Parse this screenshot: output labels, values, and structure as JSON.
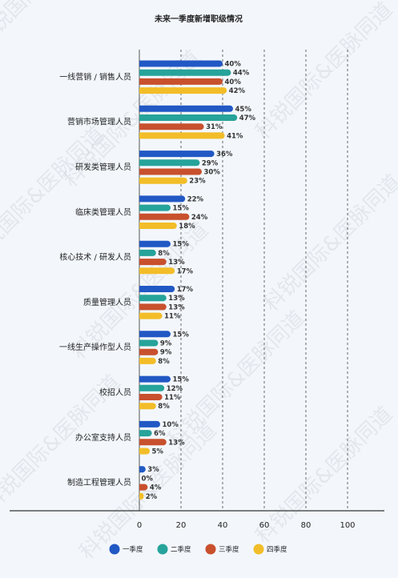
{
  "chart_data": {
    "type": "bar",
    "orientation": "horizontal",
    "title": "未来一季度新增职级情况",
    "categories": [
      "一线营销 / 销售人员",
      "营销市场管理人员",
      "研发类管理人员",
      "临床类管理人员",
      "核心技术 / 研发人员",
      "质量管理人员",
      "一线生产操作型人员",
      "校招人员",
      "办公室支持人员",
      "制造工程管理人员"
    ],
    "series": [
      {
        "name": "一季度",
        "color": "#2158c4",
        "values": [
          40,
          45,
          36,
          22,
          15,
          17,
          15,
          15,
          10,
          3
        ],
        "labels": [
          "40%",
          "45%",
          "36%",
          "22%",
          "15%",
          "17%",
          "15%",
          "15%",
          "10%",
          "3%"
        ]
      },
      {
        "name": "二季度",
        "color": "#26a39a",
        "values": [
          44,
          47,
          29,
          15,
          8,
          13,
          9,
          12,
          6,
          0
        ],
        "labels": [
          "44%",
          "47%",
          "29%",
          "15%",
          "8%",
          "13%",
          "9%",
          "12%",
          "6%",
          "0%"
        ]
      },
      {
        "name": "三季度",
        "color": "#c8502d",
        "values": [
          40,
          31,
          30,
          24,
          13,
          13,
          9,
          11,
          13,
          4
        ],
        "labels": [
          "40%",
          "31%",
          "30%",
          "24%",
          "13%",
          "13%",
          "9%",
          "11%",
          "13%",
          "4%"
        ]
      },
      {
        "name": "四季度",
        "color": "#f2bd28",
        "values": [
          42,
          41,
          23,
          18,
          17,
          11,
          8,
          8,
          5,
          2
        ],
        "labels": [
          "42%",
          "41%",
          "23%",
          "18%",
          "17%",
          "11%",
          "8%",
          "8%",
          "5%",
          "2%"
        ]
      }
    ],
    "xlim": [
      0,
      100
    ],
    "ticks": [
      "0",
      "20",
      "40",
      "60",
      "80",
      "100"
    ],
    "grid": "vertical dashed",
    "legend_position": "bottom"
  },
  "watermark": {
    "text": "科锐国际&医脉同道"
  }
}
